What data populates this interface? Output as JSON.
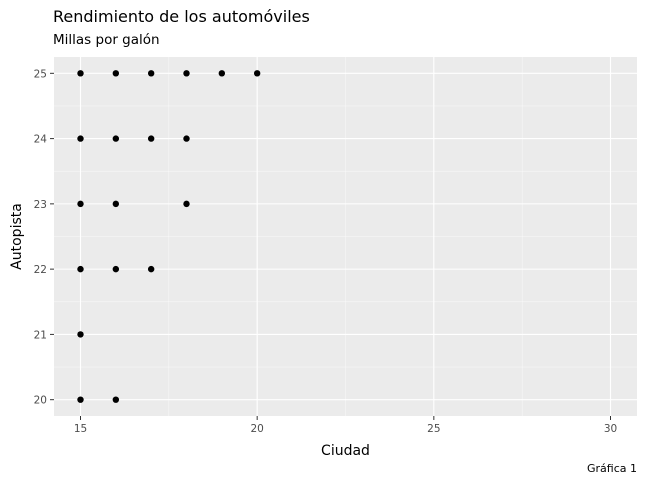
{
  "chart_data": {
    "type": "scatter",
    "title": "Rendimiento de los automóviles",
    "subtitle": "Millas por galón",
    "caption": "Gráfica 1",
    "xlabel": "Ciudad",
    "ylabel": "Autopista",
    "xlim": [
      14.25,
      30.75
    ],
    "ylim": [
      19.75,
      25.25
    ],
    "x_ticks": [
      15,
      20,
      25,
      30
    ],
    "y_ticks": [
      20,
      21,
      22,
      23,
      24,
      25
    ],
    "grid": true,
    "points": [
      {
        "x": 15,
        "y": 25
      },
      {
        "x": 16,
        "y": 25
      },
      {
        "x": 17,
        "y": 25
      },
      {
        "x": 18,
        "y": 25
      },
      {
        "x": 19,
        "y": 25
      },
      {
        "x": 20,
        "y": 25
      },
      {
        "x": 15,
        "y": 24
      },
      {
        "x": 16,
        "y": 24
      },
      {
        "x": 17,
        "y": 24
      },
      {
        "x": 18,
        "y": 24
      },
      {
        "x": 15,
        "y": 23
      },
      {
        "x": 16,
        "y": 23
      },
      {
        "x": 18,
        "y": 23
      },
      {
        "x": 15,
        "y": 22
      },
      {
        "x": 16,
        "y": 22
      },
      {
        "x": 17,
        "y": 22
      },
      {
        "x": 15,
        "y": 21
      },
      {
        "x": 15,
        "y": 20
      },
      {
        "x": 16,
        "y": 20
      }
    ],
    "colors": {
      "panel": "#ebebeb",
      "grid_major": "#ffffff",
      "point": "#000000"
    }
  }
}
